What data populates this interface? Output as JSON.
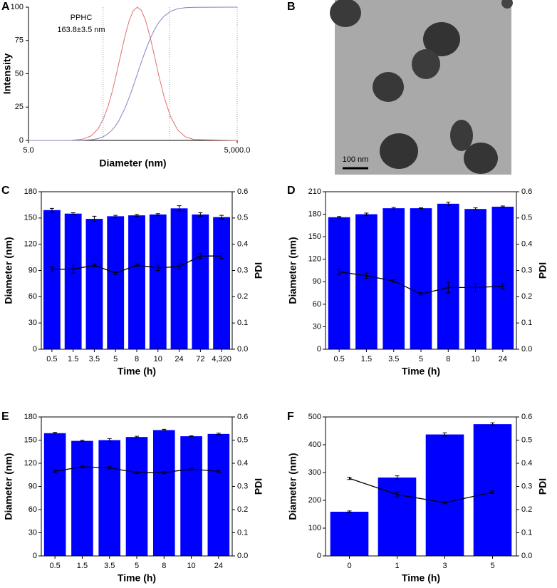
{
  "chart_data": [
    {
      "panel": "A",
      "type": "line",
      "x_label": "Diameter (nm)",
      "y_label": "Intensity",
      "annotation": [
        "PPHC",
        "163.8±3.5 nm"
      ],
      "log_x": true,
      "xlim": [
        5,
        5000
      ],
      "xticks": [
        {
          "value": 5,
          "label": "5.0"
        },
        {
          "value": 5000,
          "label": "5,000.0"
        }
      ],
      "ylim": [
        0,
        100
      ],
      "yticks": [
        0,
        25,
        50,
        75,
        100
      ],
      "vlines": [
        59,
        532,
        5000
      ],
      "vline_color": "#8899aa",
      "series": [
        {
          "color": "#e07070",
          "x": [
            5,
            10,
            20,
            30,
            40,
            50,
            60,
            70,
            80,
            90,
            100,
            120,
            140,
            160,
            184,
            210,
            240,
            280,
            320,
            380,
            450,
            550,
            700,
            900,
            1200,
            5000
          ],
          "values": [
            0,
            0,
            0,
            0.9,
            3.5,
            8.6,
            16.4,
            26,
            36.8,
            47.8,
            58.5,
            76.8,
            89.8,
            97.2,
            100,
            97.5,
            90.4,
            77.7,
            64.4,
            46.9,
            31.7,
            17.9,
            7.7,
            2.7,
            0.6,
            0
          ]
        },
        {
          "color": "#8a7fc0",
          "x": [
            5,
            10,
            20,
            30,
            40,
            50,
            60,
            70,
            80,
            90,
            100,
            120,
            140,
            160,
            184,
            210,
            240,
            280,
            320,
            380,
            450,
            550,
            700,
            900,
            1200,
            5000
          ],
          "values": [
            0,
            0,
            0,
            0.1,
            0.5,
            1.4,
            2.9,
            5.1,
            7.9,
            11.3,
            15,
            23.4,
            32.1,
            40.6,
            50,
            58.8,
            67.3,
            76.1,
            82.6,
            89.1,
            93.5,
            96.8,
            98.8,
            99.6,
            99.9,
            100
          ]
        }
      ]
    },
    {
      "panel": "B",
      "type": "image",
      "scale_bar": "100 nm"
    },
    {
      "panel": "C",
      "type": "bar",
      "x_label": "Time (h)",
      "y_label": "Diameter (nm)",
      "y2_label": "PDI",
      "categories": [
        "0.5",
        "1.5",
        "3.5",
        "5",
        "8",
        "10",
        "24",
        "72",
        "4,320"
      ],
      "ylim": [
        0,
        180
      ],
      "yticks": [
        0,
        30,
        60,
        90,
        120,
        150,
        180
      ],
      "y2lim": [
        0,
        0.6
      ],
      "y2ticks": [
        {
          "value": 0,
          "label": "0.0"
        },
        0.1,
        0.2,
        0.3,
        0.4,
        0.5,
        0.6
      ],
      "series": [
        {
          "color": "#0000ff",
          "values": [
            159,
            155,
            149,
            152,
            153,
            154,
            161,
            154,
            151
          ],
          "errors": [
            2,
            1,
            3,
            1,
            1,
            1,
            3,
            2,
            2
          ]
        },
        {
          "type": "line",
          "axis": "y2",
          "color": "#000000",
          "values": [
            0.305,
            0.305,
            0.32,
            0.29,
            0.32,
            0.31,
            0.315,
            0.355,
            0.355
          ],
          "errors": [
            0.01,
            0.015,
            0.005,
            0.005,
            0.005,
            0.01,
            0.01,
            0.01,
            0.01
          ]
        }
      ]
    },
    {
      "panel": "D",
      "type": "bar",
      "x_label": "Time (h)",
      "y_label": "Diameter (nm)",
      "y2_label": "PDI",
      "categories": [
        "0.5",
        "1.5",
        "3.5",
        "5",
        "8",
        "10",
        "24"
      ],
      "ylim": [
        0,
        210
      ],
      "yticks": [
        0,
        30,
        60,
        90,
        120,
        150,
        180,
        210
      ],
      "y2lim": [
        0,
        0.6
      ],
      "y2ticks": [
        {
          "value": 0,
          "label": "0.0"
        },
        0.1,
        0.2,
        0.3,
        0.4,
        0.5,
        0.6
      ],
      "series": [
        {
          "color": "#0000ff",
          "values": [
            176,
            180,
            188,
            188,
            194,
            187,
            190
          ],
          "errors": [
            1,
            1.5,
            1,
            0.5,
            2,
            1.5,
            1
          ]
        },
        {
          "type": "line",
          "axis": "y2",
          "color": "#000000",
          "values": [
            0.295,
            0.28,
            0.26,
            0.21,
            0.235,
            0.235,
            0.24
          ],
          "errors": [
            0.01,
            0.01,
            0.005,
            0.005,
            0.02,
            0.015,
            0.01
          ]
        }
      ]
    },
    {
      "panel": "E",
      "type": "bar",
      "x_label": "Time (h)",
      "y_label": "Diameter (nm)",
      "y2_label": "PDI",
      "categories": [
        "0.5",
        "1.5",
        "3.5",
        "5",
        "8",
        "10",
        "24"
      ],
      "ylim": [
        0,
        180
      ],
      "yticks": [
        0,
        30,
        60,
        90,
        120,
        150,
        180
      ],
      "y2lim": [
        0,
        0.6
      ],
      "y2ticks": [
        {
          "value": 0,
          "label": "0.0"
        },
        0.1,
        0.2,
        0.3,
        0.4,
        0.5,
        0.6
      ],
      "series": [
        {
          "color": "#0000ff",
          "values": [
            159,
            149,
            150,
            154,
            163,
            155,
            158
          ],
          "errors": [
            1,
            1,
            2,
            1,
            1,
            0.5,
            1
          ]
        },
        {
          "type": "line",
          "axis": "y2",
          "color": "#000000",
          "values": [
            0.365,
            0.385,
            0.38,
            0.36,
            0.36,
            0.375,
            0.365
          ],
          "errors": [
            0.005,
            0.005,
            0.005,
            0.005,
            0.005,
            0.005,
            0.005
          ]
        }
      ]
    },
    {
      "panel": "F",
      "type": "bar",
      "x_label": "Time (h)",
      "y_label": "Diameter (nm)",
      "y2_label": "PDI",
      "categories": [
        "0",
        "1",
        "3",
        "5"
      ],
      "ylim": [
        0,
        500
      ],
      "yticks": [
        0,
        100,
        200,
        300,
        400,
        500
      ],
      "y2lim": [
        0,
        0.6
      ],
      "y2ticks": [
        {
          "value": 0,
          "label": "0.0"
        },
        0.1,
        0.2,
        0.3,
        0.4,
        0.5,
        0.6
      ],
      "series": [
        {
          "color": "#0000ff",
          "values": [
            159,
            282,
            437,
            474
          ],
          "errors": [
            3,
            6,
            6,
            5
          ]
        },
        {
          "type": "line",
          "axis": "y2",
          "color": "#000000",
          "values": [
            0.335,
            0.265,
            0.23,
            0.275
          ],
          "errors": [
            0.005,
            0.01,
            0.005,
            0.005
          ]
        }
      ]
    }
  ]
}
